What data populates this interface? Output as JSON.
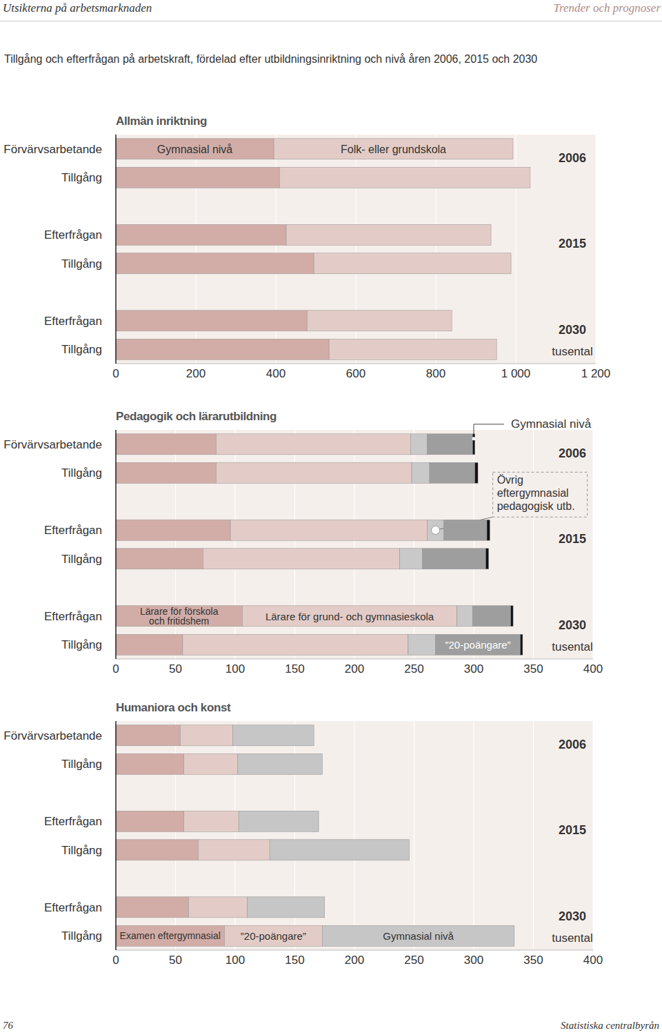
{
  "header": {
    "left": "Utsikterna på arbetsmarknaden",
    "right": "Trender och prognoser"
  },
  "title": "Tillgång och efterfrågan på arbetskraft, fördelad efter utbildningsinriktning och nivå åren 2006, 2015 och 2030",
  "footer": {
    "page": "76",
    "publisher": "Statistiska centralbyrån"
  },
  "chart_data": [
    {
      "type": "bar",
      "orientation": "horizontal",
      "stacked": true,
      "grid": true,
      "title": "Allmän inriktning",
      "categories": [
        "Förvärvsarbetande",
        "Tillgång",
        null,
        "Efterfrågan",
        "Tillgång",
        null,
        "Efterfrågan",
        "Tillgång"
      ],
      "series": [
        {
          "name": "Gymnasial nivå",
          "color": "#d2ada7",
          "values": [
            395,
            409,
            null,
            426,
            495,
            null,
            478,
            533
          ]
        },
        {
          "name": "Folk- eller grundskola",
          "color": "#e3ccc7",
          "values": [
            598,
            627,
            null,
            512,
            493,
            null,
            362,
            419
          ]
        }
      ],
      "xlim": [
        0,
        1200
      ],
      "xticks": [
        0,
        200,
        400,
        600,
        800,
        {
          "value": 1000,
          "label": "1 000"
        },
        {
          "value": 1200,
          "label": "1 200"
        }
      ],
      "annotations": {
        "years": [
          "2006",
          "2015",
          "2030"
        ],
        "unit": "tusental"
      }
    },
    {
      "type": "bar",
      "orientation": "horizontal",
      "stacked": true,
      "grid": true,
      "title": "Pedagogik och lärarutbildning",
      "categories": [
        "Förvärvsarbetande",
        "Tillgång",
        null,
        "Efterfrågan",
        "Tillgång",
        null,
        "Efterfrågan",
        "Tillgång"
      ],
      "series": [
        {
          "name": "Lärare för förskola och fritidshem",
          "color": "#d2ada7",
          "values": [
            84,
            84,
            null,
            96,
            73,
            null,
            106,
            56
          ]
        },
        {
          "name": "Lärare för grund- och gymnasieskola",
          "color": "#e3ccc7",
          "values": [
            163,
            164,
            null,
            165,
            165,
            null,
            180,
            189
          ]
        },
        {
          "name": "Övrig eftergymnasial pedagogisk utb.",
          "color": "#c9c9c9",
          "values": [
            14,
            15,
            null,
            14,
            19,
            null,
            13,
            23
          ]
        },
        {
          "name": "”20-poängare”",
          "color": "#9e9e9e",
          "values": [
            38,
            38,
            null,
            36,
            53,
            null,
            32,
            71
          ]
        },
        {
          "name": "Gymnasial nivå",
          "color": "#111111",
          "values": [
            2,
            2.5,
            null,
            2.5,
            2.5,
            null,
            2,
            2
          ]
        }
      ],
      "xlim": [
        0,
        400
      ],
      "xticks": [
        0,
        50,
        100,
        150,
        200,
        250,
        300,
        350,
        400
      ],
      "annotations": {
        "years": [
          "2006",
          "2015",
          "2030"
        ],
        "unit": "tusental"
      }
    },
    {
      "type": "bar",
      "orientation": "horizontal",
      "stacked": true,
      "grid": true,
      "title": "Humaniora och konst",
      "categories": [
        "Förvärvsarbetande",
        "Tillgång",
        null,
        "Efterfrågan",
        "Tillgång",
        null,
        "Efterfrågan",
        "Tillgång"
      ],
      "series": [
        {
          "name": "Examen eftergymnasial",
          "color": "#d2ada7",
          "values": [
            54,
            57,
            null,
            57,
            69,
            null,
            61,
            91
          ]
        },
        {
          "name": "”20-poängare”",
          "color": "#e3ccc7",
          "values": [
            44,
            45,
            null,
            46,
            60,
            null,
            49,
            82
          ]
        },
        {
          "name": "Gymnasial nivå",
          "color": "#c6c6c6",
          "values": [
            68,
            71,
            null,
            67,
            117,
            null,
            65,
            161
          ]
        }
      ],
      "xlim": [
        0,
        400
      ],
      "xticks": [
        0,
        50,
        100,
        150,
        200,
        250,
        300,
        350,
        400
      ],
      "annotations": {
        "years": [
          "2006",
          "2015",
          "2030"
        ],
        "unit": "tusental"
      }
    }
  ]
}
